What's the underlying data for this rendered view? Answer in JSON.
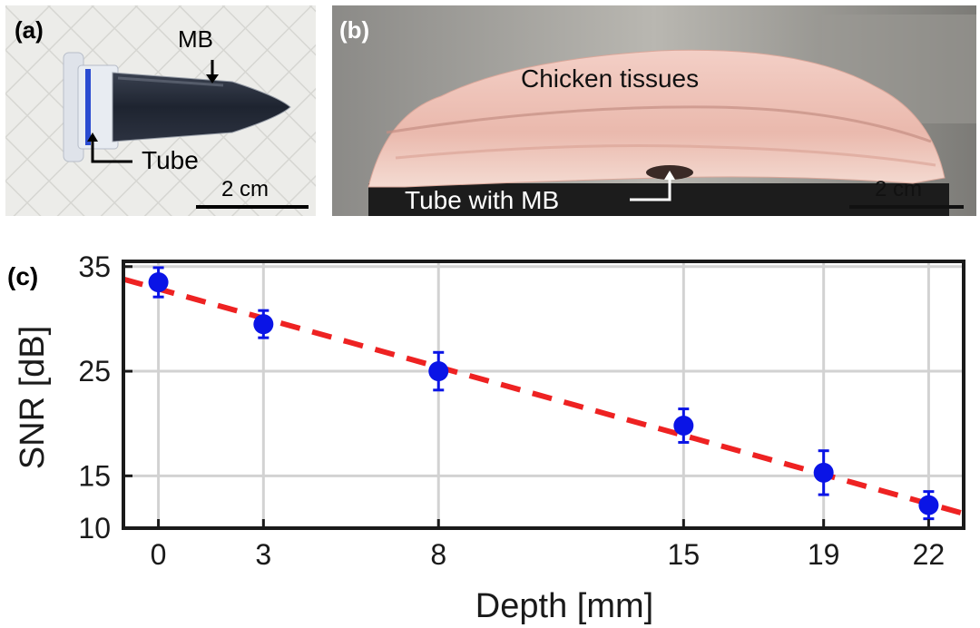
{
  "panel_a": {
    "label": "(a)",
    "mb_label": "MB",
    "tube_label": "Tube",
    "scale_label": "2 cm"
  },
  "panel_b": {
    "label": "(b)",
    "tissue_label": "Chicken tissues",
    "tube_label": "Tube with MB",
    "scale_label": "2 cm"
  },
  "panel_c": {
    "label": "(c)"
  },
  "chart_data": {
    "type": "scatter",
    "title": "",
    "xlabel": "Depth [mm]",
    "ylabel": "SNR [dB]",
    "x_ticks": [
      0,
      3,
      8,
      15,
      19,
      22
    ],
    "y_ticks": [
      10,
      15,
      25,
      35
    ],
    "xlim": [
      -1,
      23
    ],
    "ylim": [
      10,
      35.5
    ],
    "grid": true,
    "series": [
      {
        "x": [
          0,
          3,
          8,
          15,
          19,
          22
        ],
        "y": [
          33.5,
          29.5,
          25,
          19.8,
          15.3,
          12.2
        ],
        "yerr": [
          1.4,
          1.3,
          1.8,
          1.6,
          2.1,
          1.3
        ],
        "color": "#0a14e6"
      }
    ],
    "fit_line": {
      "x": [
        -1,
        23
      ],
      "y": [
        33.8,
        11.4
      ],
      "style": "dashed",
      "color": "#ee2222"
    }
  }
}
